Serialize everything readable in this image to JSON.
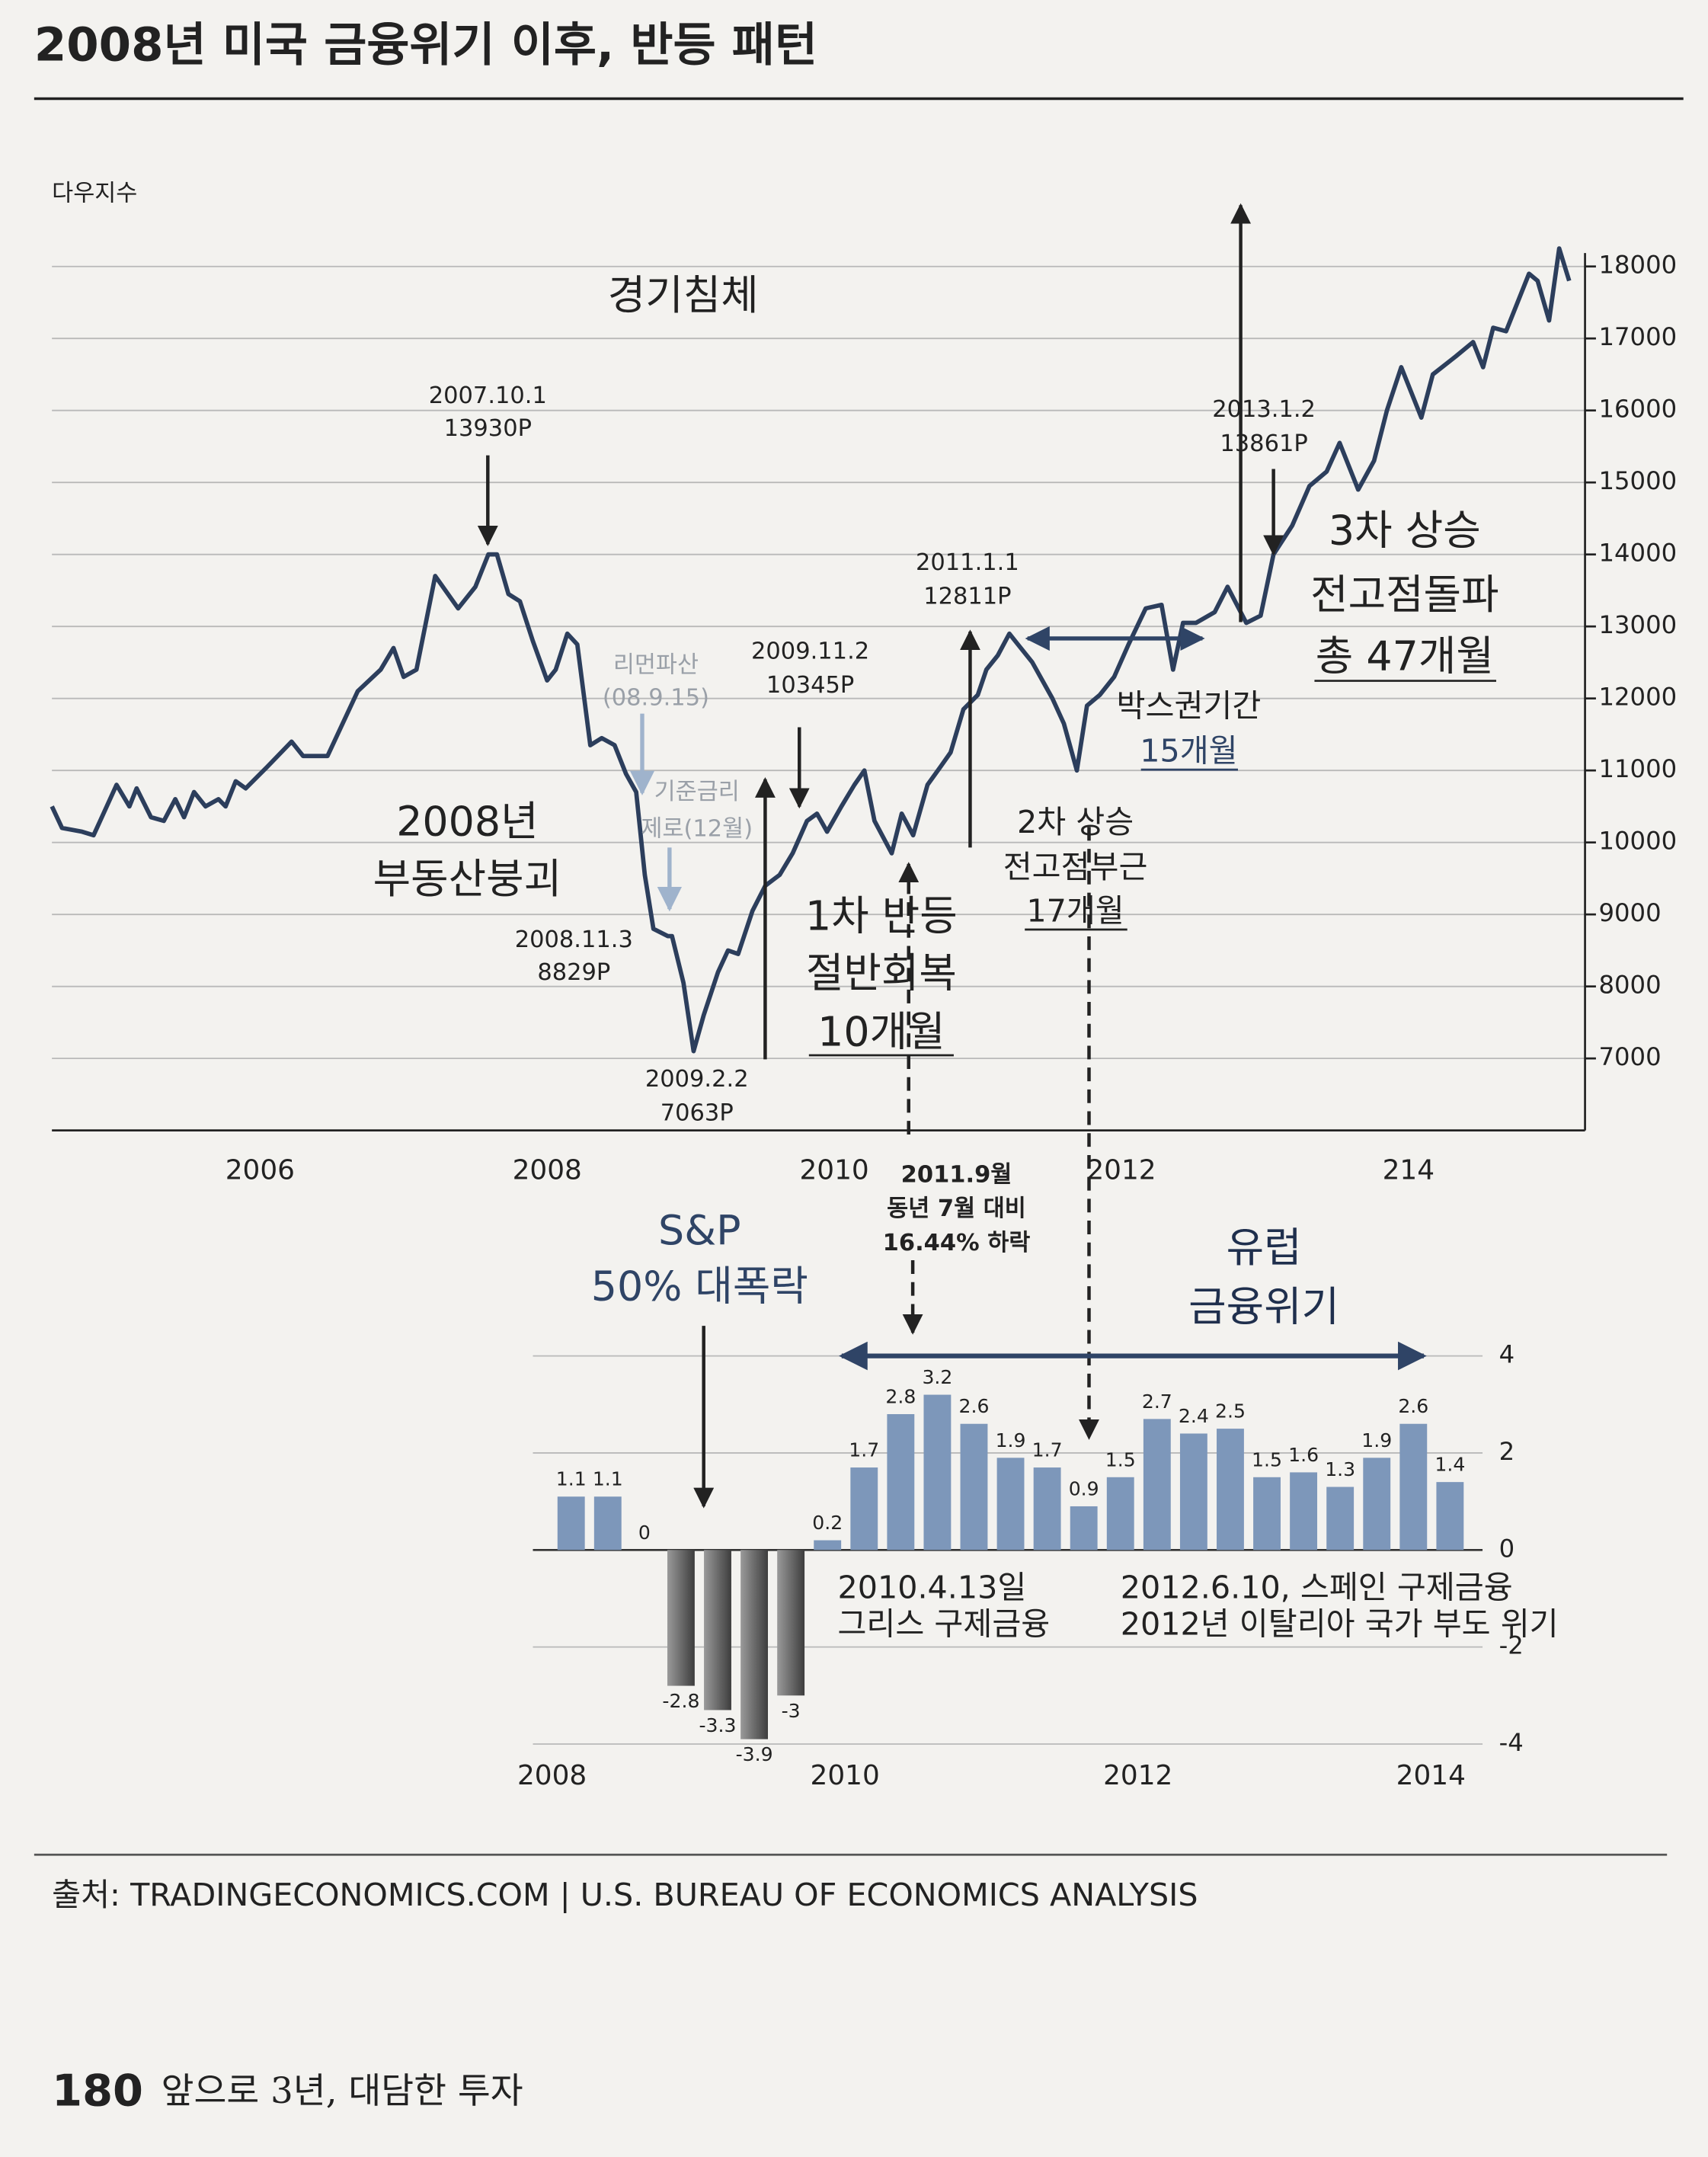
{
  "page": {
    "title": "2008년 미국 금융위기 이후, 반등 패턴",
    "source": "출처: TRADINGECONOMICS.COM | U.S. BUREAU OF ECONOMICS ANALYSIS",
    "page_number": "180",
    "book_title": "앞으로 3년, 대담한 투자"
  },
  "chart_data": [
    {
      "type": "line",
      "y_label": "다우지수",
      "color": "#2c3e5c",
      "grid": true,
      "xlim": [
        2004.55,
        2015.23
      ],
      "ylim": [
        6000,
        18850
      ],
      "xticks": [
        2006,
        2008,
        2010,
        2012,
        {
          "value": 2014,
          "label": "214"
        }
      ],
      "yticks": [
        7000,
        8000,
        9000,
        10000,
        11000,
        12000,
        13000,
        14000,
        15000,
        16000,
        17000,
        18000
      ],
      "x": [
        2004.55,
        2004.62,
        2004.76,
        2004.84,
        2005.0,
        2005.09,
        2005.14,
        2005.24,
        2005.33,
        2005.41,
        2005.47,
        2005.54,
        2005.62,
        2005.71,
        2005.76,
        2005.83,
        2005.9,
        2006.05,
        2006.22,
        2006.3,
        2006.47,
        2006.68,
        2006.84,
        2006.93,
        2007.0,
        2007.09,
        2007.22,
        2007.38,
        2007.5,
        2007.59,
        2007.65,
        2007.73,
        2007.81,
        2007.9,
        2008.0,
        2008.06,
        2008.14,
        2008.21,
        2008.3,
        2008.38,
        2008.47,
        2008.55,
        2008.62,
        2008.68,
        2008.74,
        2008.84,
        2008.87,
        2008.95,
        2009.02,
        2009.09,
        2009.19,
        2009.26,
        2009.33,
        2009.43,
        2009.52,
        2009.62,
        2009.71,
        2009.81,
        2009.88,
        2009.95,
        2010.05,
        2010.14,
        2010.21,
        2010.28,
        2010.4,
        2010.47,
        2010.55,
        2010.65,
        2010.74,
        2010.81,
        2010.9,
        2011.0,
        2011.06,
        2011.14,
        2011.22,
        2011.28,
        2011.38,
        2011.52,
        2011.6,
        2011.69,
        2011.76,
        2011.85,
        2011.95,
        2012.05,
        2012.17,
        2012.28,
        2012.36,
        2012.43,
        2012.52,
        2012.65,
        2012.74,
        2012.87,
        2012.97,
        2013.06,
        2013.19,
        2013.31,
        2013.43,
        2013.52,
        2013.65,
        2013.76,
        2013.85,
        2013.95,
        2014.09,
        2014.17,
        2014.33,
        2014.45,
        2014.52,
        2014.59,
        2014.68,
        2014.84,
        2014.9,
        2014.98,
        2015.05,
        2015.12
      ],
      "values": [
        10500,
        10200,
        10150,
        10100,
        10800,
        10500,
        10750,
        10350,
        10300,
        10600,
        10350,
        10700,
        10500,
        10600,
        10500,
        10850,
        10750,
        11050,
        11400,
        11200,
        11200,
        12100,
        12400,
        12700,
        12300,
        12400,
        13700,
        13250,
        13550,
        14000,
        14000,
        13450,
        13350,
        12800,
        12250,
        12400,
        12900,
        12750,
        11350,
        11450,
        11350,
        10950,
        10700,
        9550,
        8800,
        8700,
        8700,
        8050,
        7100,
        7600,
        8200,
        8500,
        8450,
        9050,
        9400,
        9550,
        9850,
        10300,
        10400,
        10150,
        10500,
        10800,
        11000,
        10300,
        9850,
        10400,
        10100,
        10800,
        11050,
        11250,
        11850,
        12050,
        12400,
        12600,
        12900,
        12750,
        12500,
        12000,
        11650,
        11000,
        11900,
        12050,
        12300,
        12750,
        13250,
        13300,
        12400,
        13050,
        13050,
        13200,
        13550,
        13050,
        13150,
        14000,
        14400,
        14950,
        15150,
        15550,
        14900,
        15300,
        16000,
        16600,
        15900,
        16500,
        16750,
        16950,
        16600,
        17150,
        17100,
        17900,
        17800,
        17250,
        18250,
        17800
      ],
      "annotations": [
        [
          "경기침체"
        ],
        [
          "2007.10.1",
          "13930P"
        ],
        [
          "2013.1.2",
          "13861P"
        ],
        [
          "2011.1.1",
          "12811P"
        ],
        [
          "리먼파산",
          "(08.9.15)"
        ],
        [
          "2009.11.2",
          "10345P"
        ],
        [
          "기준금리",
          "제로(12월)"
        ],
        [
          "2008년",
          "부동산붕괴"
        ],
        [
          "2008.11.3",
          "8829P"
        ],
        [
          "2009.2.2",
          "7063P"
        ],
        [
          "1차 반등",
          "절반회복",
          "10개월"
        ],
        [
          "2차 상승",
          "전고점부근",
          "17개월"
        ],
        [
          "박스권기간",
          "15개월"
        ],
        [
          "3차 상승",
          "전고점돌파",
          "총 47개월"
        ],
        [
          "2011.9월",
          "동년 7월 대비",
          "16.44% 하락"
        ],
        [
          "S&P",
          "50% 대폭락"
        ],
        [
          "유럽",
          "금융위기"
        ]
      ]
    },
    {
      "type": "bar",
      "color": "#7d97ba",
      "negative_color": "#5e5e5e",
      "grid": true,
      "categories": [
        "2008",
        null,
        null,
        null,
        null,
        null,
        null,
        null,
        "2010",
        null,
        null,
        null,
        null,
        null,
        null,
        null,
        "2012",
        null,
        null,
        null,
        null,
        null,
        null,
        null,
        "2014"
      ],
      "values": [
        1.1,
        1.1,
        0,
        -2.8,
        -3.3,
        -3.9,
        -3,
        0.2,
        1.7,
        2.8,
        3.2,
        2.6,
        1.9,
        1.7,
        0.9,
        1.5,
        2.7,
        2.4,
        2.5,
        1.5,
        1.6,
        1.3,
        1.9,
        2.6,
        1.4
      ],
      "ylim": [
        -4,
        4
      ],
      "yticks": [
        -4,
        -2,
        0,
        2,
        4
      ],
      "annotations": [
        [
          "2010.4.13일",
          "그리스 구제금융"
        ],
        [
          "2012.6.10, 스페인 구제금융",
          "2012년 이탈리아 국가 부도 위기"
        ]
      ]
    }
  ]
}
